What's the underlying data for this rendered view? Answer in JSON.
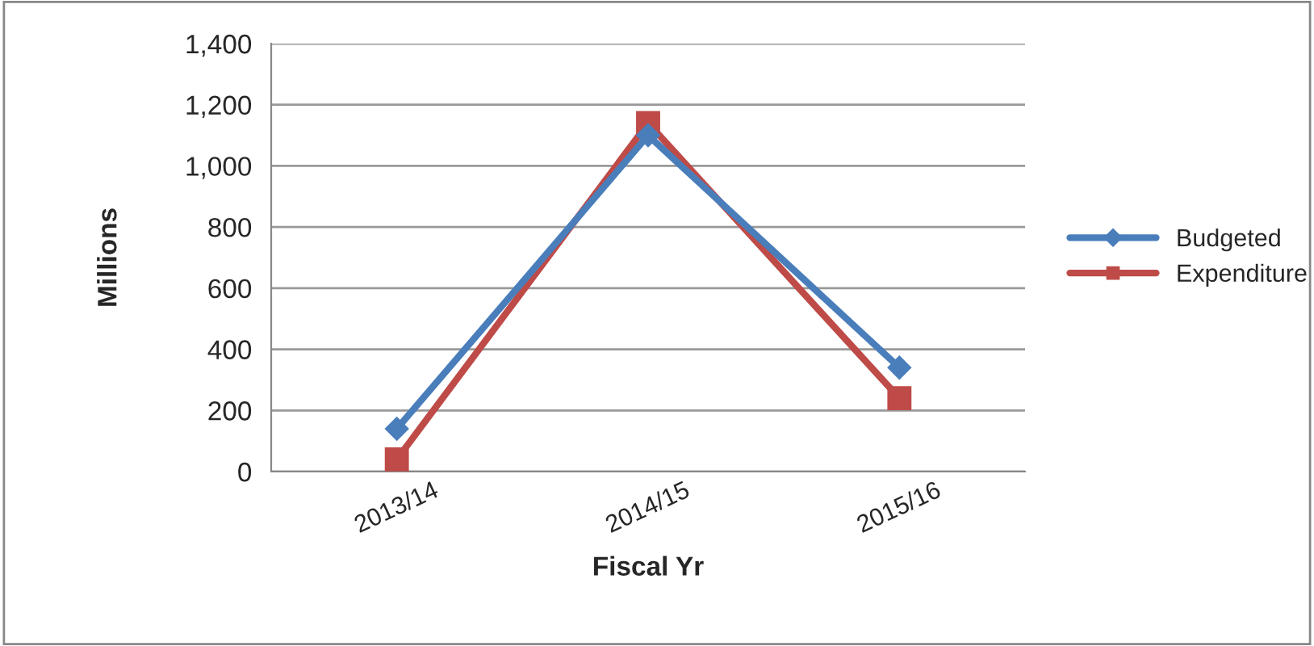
{
  "chart_data": {
    "type": "line",
    "xlabel": "Fiscal Yr",
    "ylabel": "Millions",
    "categories": [
      "2013/14",
      "2014/15",
      "2015/16"
    ],
    "series": [
      {
        "name": "Budgeted",
        "color": "#4a7ebb",
        "values": [
          140,
          1100,
          340
        ],
        "marker": "diamond"
      },
      {
        "name": "Expenditure",
        "color": "#be4b48",
        "values": [
          40,
          1140,
          240
        ],
        "marker": "square"
      }
    ],
    "ylim": [
      0,
      1400
    ],
    "yticks": [
      {
        "value": 0,
        "label": "0"
      },
      {
        "value": 200,
        "label": "200"
      },
      {
        "value": 400,
        "label": "400"
      },
      {
        "value": 600,
        "label": "600"
      },
      {
        "value": 800,
        "label": "800"
      },
      {
        "value": 1000,
        "label": "1,000"
      },
      {
        "value": 1200,
        "label": "1,200"
      },
      {
        "value": 1400,
        "label": "1,400"
      }
    ],
    "grid": "y",
    "legend": "right",
    "line_style": "solid"
  }
}
